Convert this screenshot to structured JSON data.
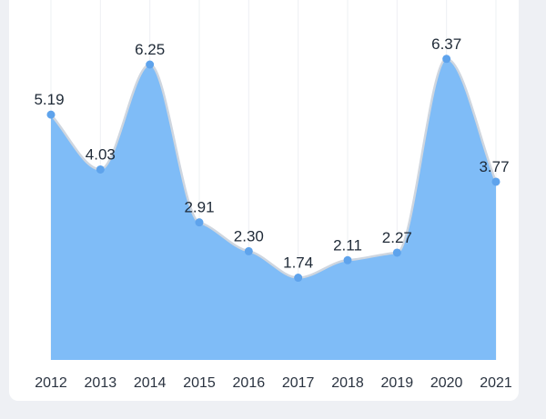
{
  "chart_data": {
    "type": "area",
    "categories": [
      "2012",
      "2013",
      "2014",
      "2015",
      "2016",
      "2017",
      "2018",
      "2019",
      "2020",
      "2021"
    ],
    "values": [
      5.19,
      4.03,
      6.25,
      2.91,
      2.3,
      1.74,
      2.11,
      2.27,
      6.37,
      3.77
    ],
    "value_labels": [
      "5.19",
      "4.03",
      "6.25",
      "2.91",
      "2.30",
      "1.74",
      "2.11",
      "2.27",
      "6.37",
      "3.77"
    ],
    "ylim": [
      0,
      7.2
    ],
    "grid": "vertical",
    "colors": {
      "fill": "#7fbcf7",
      "line": "#cfd6df",
      "point": "#5ea3ec"
    }
  }
}
